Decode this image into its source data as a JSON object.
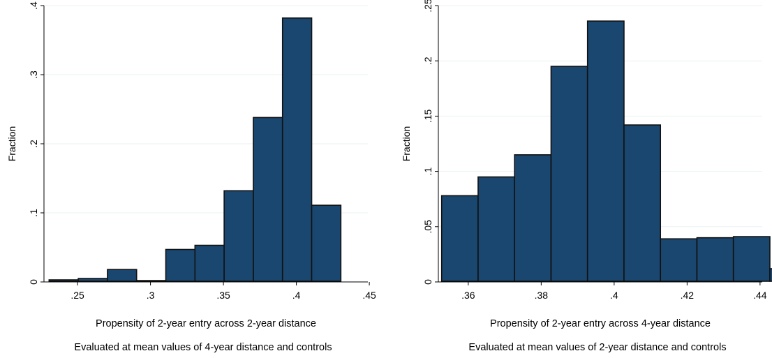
{
  "chart_data": [
    {
      "type": "bar",
      "histogram": true,
      "ylabel": "Fraction",
      "xlabel": "Propensity of 2-year entry across 2-year distance",
      "note": "Evaluated at mean values of 4-year distance and controls",
      "xlim": [
        0.227,
        0.449
      ],
      "ylim": [
        0,
        0.4
      ],
      "xticks": [
        0.25,
        0.3,
        0.35,
        0.4,
        0.45
      ],
      "xtick_labels": [
        ".25",
        ".3",
        ".35",
        ".4",
        ".45"
      ],
      "yticks": [
        0,
        0.1,
        0.2,
        0.3,
        0.4
      ],
      "ytick_labels": [
        "0",
        ".1",
        ".2",
        ".3",
        ".4"
      ],
      "grid": true,
      "bar_color": "#1a476f",
      "bins": [
        {
          "x0": 0.2305,
          "x1": 0.2505,
          "value": 0.003
        },
        {
          "x0": 0.2505,
          "x1": 0.2705,
          "value": 0.005
        },
        {
          "x0": 0.2705,
          "x1": 0.2905,
          "value": 0.018
        },
        {
          "x0": 0.2905,
          "x1": 0.3105,
          "value": 0.002
        },
        {
          "x0": 0.3105,
          "x1": 0.3305,
          "value": 0.047
        },
        {
          "x0": 0.3305,
          "x1": 0.3505,
          "value": 0.053
        },
        {
          "x0": 0.3505,
          "x1": 0.3705,
          "value": 0.132
        },
        {
          "x0": 0.3705,
          "x1": 0.3905,
          "value": 0.238
        },
        {
          "x0": 0.3905,
          "x1": 0.4105,
          "value": 0.382
        },
        {
          "x0": 0.4105,
          "x1": 0.4305,
          "value": 0.111
        }
      ]
    },
    {
      "type": "bar",
      "histogram": true,
      "ylabel": "Fraction",
      "xlabel": "Propensity of 2-year entry across 4-year distance",
      "note": "Evaluated at mean values of 2-year distance and controls",
      "xlim": [
        0.3518,
        0.4406
      ],
      "ylim": [
        0,
        0.25
      ],
      "xticks": [
        0.36,
        0.38,
        0.4,
        0.42,
        0.44
      ],
      "xtick_labels": [
        ".36",
        ".38",
        ".4",
        ".42",
        ".44"
      ],
      "yticks": [
        0,
        0.05,
        0.1,
        0.15,
        0.2,
        0.25
      ],
      "ytick_labels": [
        "0",
        ".05",
        ".1",
        ".15",
        ".2",
        ".25"
      ],
      "grid": true,
      "bar_color": "#1a476f",
      "bins": [
        {
          "x0": 0.3527,
          "x1": 0.3627,
          "value": 0.078
        },
        {
          "x0": 0.3627,
          "x1": 0.3727,
          "value": 0.095
        },
        {
          "x0": 0.3727,
          "x1": 0.3827,
          "value": 0.115
        },
        {
          "x0": 0.3827,
          "x1": 0.3927,
          "value": 0.195
        },
        {
          "x0": 0.3927,
          "x1": 0.4027,
          "value": 0.236
        },
        {
          "x0": 0.4027,
          "x1": 0.4127,
          "value": 0.142
        },
        {
          "x0": 0.4127,
          "x1": 0.4227,
          "value": 0.039
        },
        {
          "x0": 0.4227,
          "x1": 0.4327,
          "value": 0.04
        },
        {
          "x0": 0.4327,
          "x1": 0.4427,
          "value": 0.041
        },
        {
          "x0": 0.4427,
          "x1": 0.4527,
          "value": 0.012
        }
      ]
    }
  ]
}
